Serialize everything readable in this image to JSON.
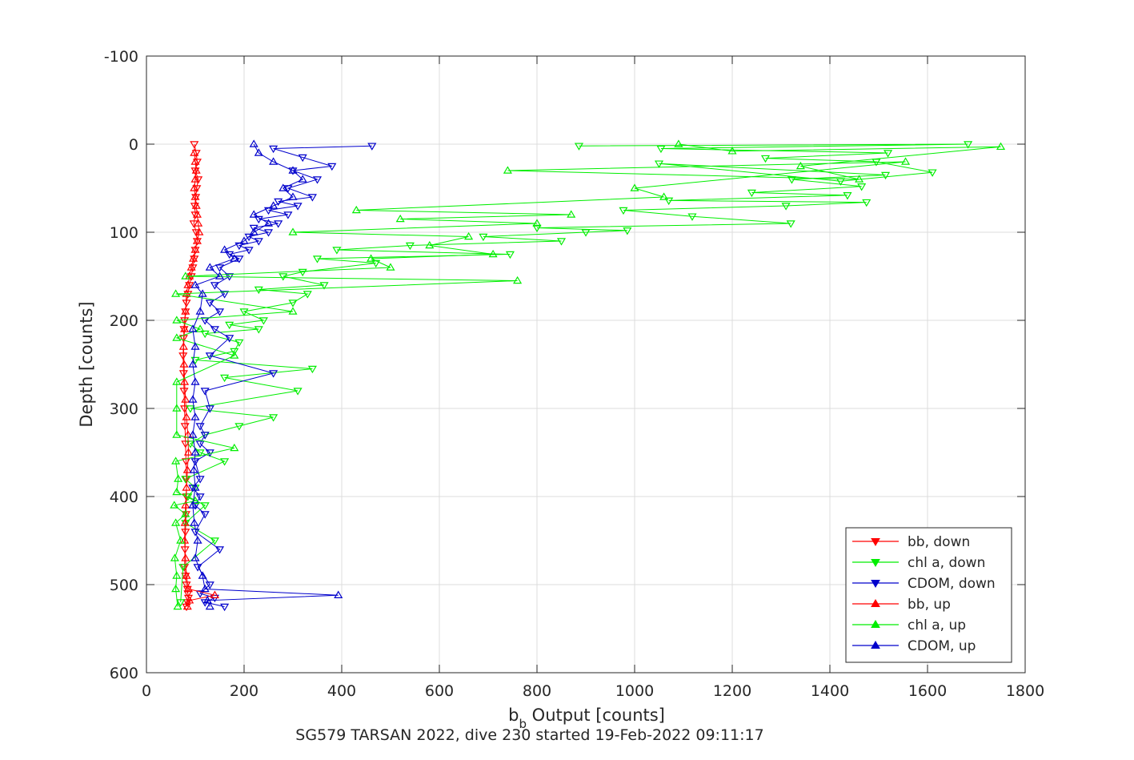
{
  "chart_data": {
    "type": "line",
    "xlabel_main": "b",
    "xlabel_sub": "b",
    "xlabel_rest": " Output [counts]",
    "ylabel": "Depth [counts]",
    "caption": "SG579 TARSAN 2022, dive 230 started 19-Feb-2022 09:11:17",
    "xlim": [
      0,
      1800
    ],
    "ylim": [
      -100,
      600
    ],
    "y_reversed": true,
    "grid": true,
    "legend_position": "bottom-right",
    "x_ticks": [
      0,
      200,
      400,
      600,
      800,
      1000,
      1200,
      1400,
      1600,
      1800
    ],
    "y_ticks": [
      -100,
      0,
      100,
      200,
      300,
      400,
      500,
      600
    ],
    "series": [
      {
        "name": "bb, down",
        "color": "#ff0000",
        "marker": "triangle-down",
        "x": [
          98,
          102,
          104,
          100,
          106,
          103,
          101,
          99,
          100,
          97,
          102,
          104,
          100,
          98,
          95,
          92,
          88,
          85,
          82,
          80,
          78,
          77,
          76,
          75,
          76,
          77,
          78,
          79,
          80,
          81,
          82,
          82,
          81,
          80,
          79,
          78,
          80,
          82,
          84,
          85,
          86,
          84,
          82
        ],
        "y": [
          0,
          10,
          20,
          30,
          40,
          50,
          60,
          70,
          80,
          90,
          100,
          110,
          120,
          130,
          140,
          150,
          160,
          170,
          180,
          190,
          200,
          210,
          220,
          240,
          260,
          280,
          300,
          320,
          340,
          360,
          380,
          400,
          420,
          440,
          460,
          480,
          490,
          500,
          505,
          510,
          515,
          520,
          525
        ]
      },
      {
        "name": "chl a, down",
        "color": "#00ee00",
        "marker": "triangle-down",
        "x": [
          886,
          1683,
          1054,
          1519,
          1268,
          1495,
          1610,
          1422,
          1050,
          1514,
          1322,
          1465,
          1240,
          1436,
          1070,
          1475,
          1310,
          977,
          1118,
          1320,
          800,
          985,
          900,
          690,
          850,
          540,
          390,
          745,
          350,
          470,
          320,
          280,
          364,
          230,
          330,
          300,
          200,
          240,
          170,
          230,
          120,
          190,
          180,
          100,
          340,
          160,
          310,
          90,
          260,
          190,
          120,
          90,
          110,
          160,
          80,
          100,
          85,
          120,
          80,
          140,
          75,
          70
        ],
        "y": [
          2,
          0,
          5,
          10,
          16,
          20,
          32,
          42,
          22,
          35,
          40,
          48,
          55,
          58,
          64,
          66,
          70,
          75,
          82,
          90,
          95,
          98,
          100,
          105,
          110,
          115,
          120,
          125,
          130,
          135,
          145,
          150,
          160,
          165,
          170,
          180,
          190,
          200,
          205,
          210,
          215,
          225,
          235,
          245,
          255,
          265,
          280,
          300,
          310,
          320,
          330,
          340,
          350,
          360,
          380,
          390,
          400,
          410,
          430,
          450,
          480,
          520
        ]
      },
      {
        "name": "CDOM, down",
        "color": "#0000cc",
        "marker": "triangle-down",
        "x": [
          462,
          260,
          320,
          380,
          300,
          350,
          290,
          340,
          270,
          310,
          250,
          290,
          230,
          270,
          220,
          250,
          210,
          230,
          190,
          210,
          170,
          190,
          150,
          170,
          140,
          160,
          130,
          150,
          120,
          140,
          170,
          130,
          260,
          120,
          130,
          110,
          120,
          110,
          130,
          100,
          110,
          95,
          110,
          100,
          120,
          100,
          150,
          105,
          130,
          110,
          140,
          120,
          160
        ],
        "y": [
          2,
          5,
          15,
          25,
          30,
          40,
          50,
          60,
          65,
          70,
          75,
          80,
          85,
          90,
          95,
          100,
          105,
          110,
          115,
          120,
          125,
          130,
          140,
          150,
          160,
          170,
          180,
          190,
          200,
          210,
          220,
          240,
          260,
          280,
          300,
          320,
          330,
          340,
          350,
          360,
          380,
          390,
          400,
          410,
          420,
          440,
          460,
          480,
          500,
          510,
          515,
          520,
          525
        ]
      },
      {
        "name": "bb, up",
        "color": "#ff0000",
        "marker": "triangle-up",
        "x": [
          84,
          88,
          140,
          86,
          82,
          80,
          78,
          79,
          80,
          82,
          84,
          86,
          85,
          82,
          80,
          78,
          77,
          76,
          78,
          80,
          82,
          85,
          88,
          92,
          96,
          100,
          104,
          108,
          106,
          104,
          102,
          100,
          98,
          100,
          102,
          100,
          98
        ],
        "y": [
          525,
          518,
          512,
          505,
          490,
          470,
          450,
          430,
          410,
          390,
          370,
          350,
          330,
          310,
          290,
          270,
          250,
          230,
          210,
          190,
          170,
          160,
          150,
          140,
          130,
          120,
          110,
          100,
          90,
          80,
          70,
          60,
          50,
          40,
          30,
          20,
          10
        ]
      },
      {
        "name": "chl a, up",
        "color": "#00ee00",
        "marker": "triangle-up",
        "x": [
          64,
          60,
          62,
          58,
          70,
          60,
          80,
          57,
          100,
          62,
          65,
          60,
          180,
          62,
          62,
          62,
          180,
          62,
          110,
          62,
          300,
          60,
          760,
          80,
          500,
          460,
          710,
          580,
          660,
          300,
          800,
          520,
          870,
          430,
          1060,
          1000,
          1555,
          740,
          1460,
          1340,
          1750,
          1200,
          1090
        ],
        "y": [
          525,
          505,
          490,
          470,
          450,
          430,
          420,
          410,
          405,
          395,
          380,
          360,
          345,
          330,
          300,
          270,
          240,
          220,
          210,
          200,
          190,
          170,
          155,
          150,
          140,
          130,
          125,
          115,
          105,
          100,
          90,
          85,
          80,
          75,
          60,
          50,
          20,
          30,
          40,
          25,
          3,
          8,
          0
        ]
      },
      {
        "name": "CDOM, up",
        "color": "#0000cc",
        "marker": "triangle-up",
        "x": [
          130,
          125,
          393,
          120,
          115,
          100,
          105,
          98,
          95,
          100,
          97,
          100,
          95,
          100,
          95,
          100,
          95,
          100,
          95,
          110,
          115,
          100,
          150,
          130,
          180,
          160,
          200,
          220,
          250,
          220,
          260,
          300,
          280,
          320,
          300,
          260,
          230,
          220
        ],
        "y": [
          525,
          518,
          512,
          505,
          490,
          470,
          450,
          430,
          410,
          390,
          370,
          350,
          330,
          310,
          290,
          270,
          250,
          230,
          210,
          190,
          170,
          160,
          150,
          140,
          130,
          120,
          110,
          100,
          90,
          80,
          70,
          60,
          50,
          40,
          30,
          20,
          10,
          0
        ]
      }
    ]
  }
}
